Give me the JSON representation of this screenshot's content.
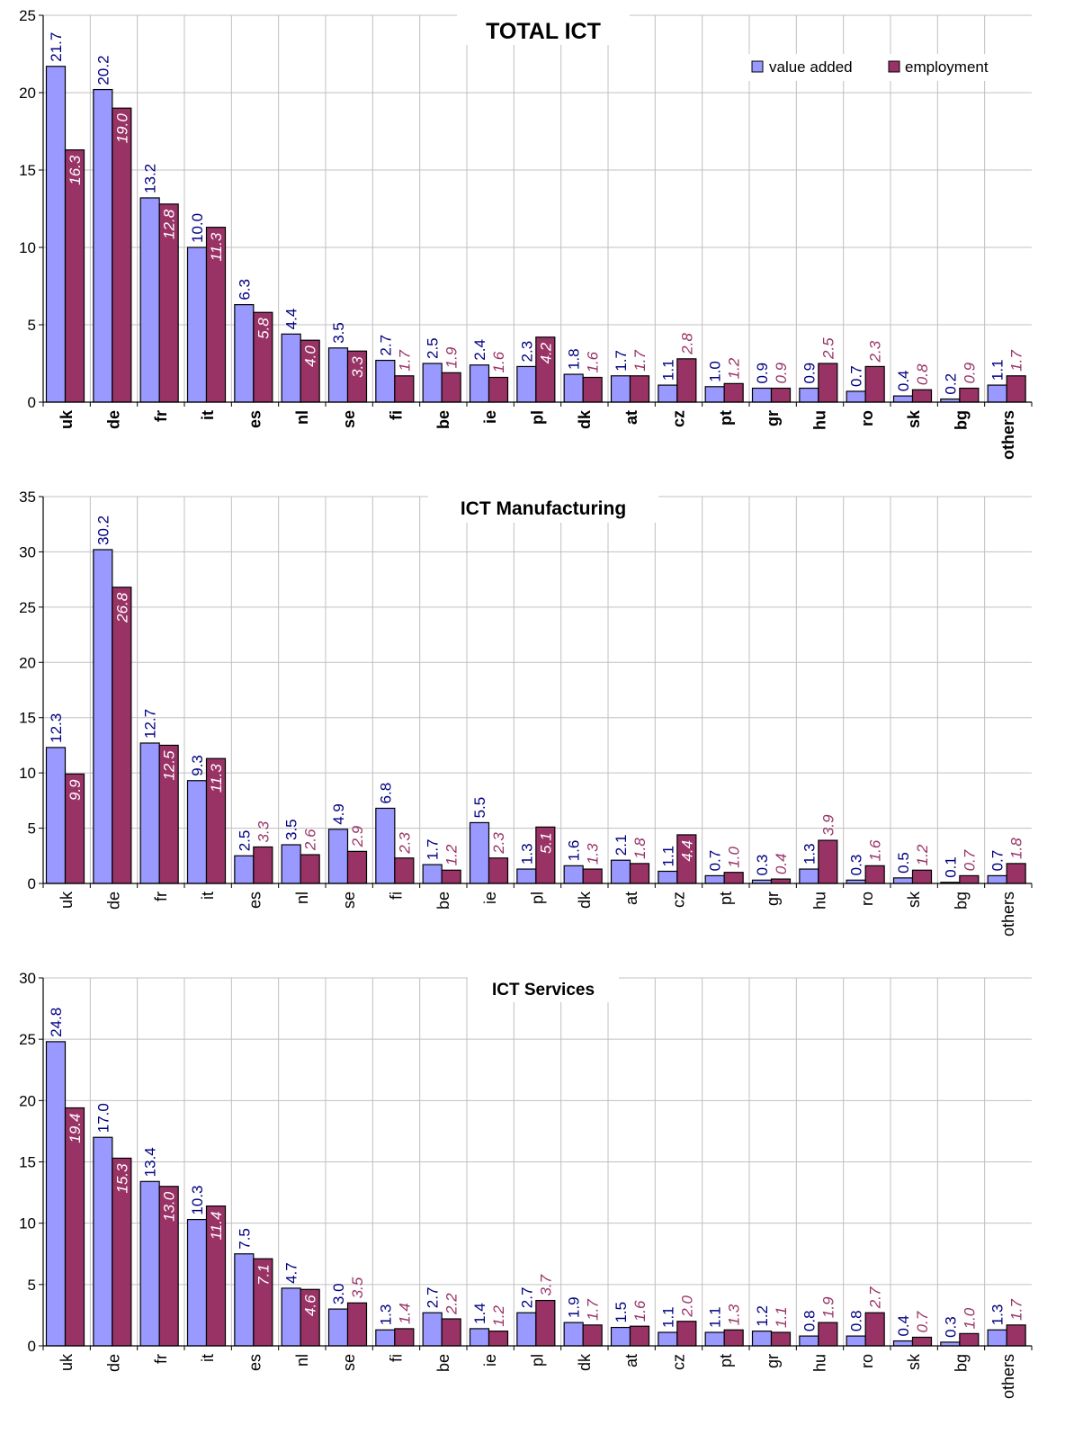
{
  "colors": {
    "value_added": "#9999FF",
    "employment": "#993366",
    "value_label": "#000080",
    "employment_label_outside": "#993366",
    "employment_label_inside": "#ffffff",
    "grid": "#c0c0c0"
  },
  "legend": {
    "value_added": "value added",
    "employment": "employment"
  },
  "chart_data": [
    {
      "type": "bar",
      "title": "TOTAL ICT",
      "categories": [
        "uk",
        "de",
        "fr",
        "it",
        "es",
        "nl",
        "se",
        "fi",
        "be",
        "ie",
        "pl",
        "dk",
        "at",
        "cz",
        "pt",
        "gr",
        "hu",
        "ro",
        "sk",
        "bg",
        "others"
      ],
      "categories_bold": true,
      "ylim": [
        0,
        25
      ],
      "yticks": [
        "0",
        "5",
        "10",
        "15",
        "20",
        "25"
      ],
      "show_legend": true,
      "series": [
        {
          "name": "value added",
          "values": [
            21.7,
            20.2,
            13.2,
            10.0,
            6.3,
            4.4,
            3.5,
            2.7,
            2.5,
            2.4,
            2.3,
            1.8,
            1.7,
            1.1,
            1.0,
            0.9,
            0.9,
            0.7,
            0.4,
            0.2,
            1.1
          ]
        },
        {
          "name": "employment",
          "values": [
            16.3,
            19.0,
            12.8,
            11.3,
            5.8,
            4.0,
            3.3,
            1.7,
            1.9,
            1.6,
            4.2,
            1.6,
            1.7,
            2.8,
            1.2,
            0.9,
            2.5,
            2.3,
            0.8,
            0.9,
            1.7
          ]
        }
      ]
    },
    {
      "type": "bar",
      "title": "ICT Manufacturing",
      "categories": [
        "uk",
        "de",
        "fr",
        "it",
        "es",
        "nl",
        "se",
        "fi",
        "be",
        "ie",
        "pl",
        "dk",
        "at",
        "cz",
        "pt",
        "gr",
        "hu",
        "ro",
        "sk",
        "bg",
        "others"
      ],
      "categories_bold": false,
      "ylim": [
        0,
        35
      ],
      "yticks": [
        "0",
        "5",
        "10",
        "15",
        "20",
        "25",
        "30",
        "35"
      ],
      "show_legend": false,
      "series": [
        {
          "name": "value added",
          "values": [
            12.3,
            30.2,
            12.7,
            9.3,
            2.5,
            3.5,
            4.9,
            6.8,
            1.7,
            5.5,
            1.3,
            1.6,
            2.1,
            1.1,
            0.7,
            0.3,
            1.3,
            0.3,
            0.5,
            0.1,
            0.7
          ]
        },
        {
          "name": "employment",
          "values": [
            9.9,
            26.8,
            12.5,
            11.3,
            3.3,
            2.6,
            2.9,
            2.3,
            1.2,
            2.3,
            5.1,
            1.3,
            1.8,
            4.4,
            1.0,
            0.4,
            3.9,
            1.6,
            1.2,
            0.7,
            1.8
          ]
        }
      ]
    },
    {
      "type": "bar",
      "title": "ICT Services",
      "categories": [
        "uk",
        "de",
        "fr",
        "it",
        "es",
        "nl",
        "se",
        "fi",
        "be",
        "ie",
        "pl",
        "dk",
        "at",
        "cz",
        "pt",
        "gr",
        "hu",
        "ro",
        "sk",
        "bg",
        "others"
      ],
      "categories_bold": false,
      "ylim": [
        0,
        30
      ],
      "yticks": [
        "0",
        "5",
        "10",
        "15",
        "20",
        "25",
        "30"
      ],
      "show_legend": false,
      "series": [
        {
          "name": "value added",
          "values": [
            24.8,
            17.0,
            13.4,
            10.3,
            7.5,
            4.7,
            3.0,
            1.3,
            2.7,
            1.4,
            2.7,
            1.9,
            1.5,
            1.1,
            1.1,
            1.2,
            0.8,
            0.8,
            0.4,
            0.3,
            1.3
          ]
        },
        {
          "name": "employment",
          "values": [
            19.4,
            15.3,
            13.0,
            11.4,
            7.1,
            4.6,
            3.5,
            1.4,
            2.2,
            1.2,
            3.7,
            1.7,
            1.6,
            2.0,
            1.3,
            1.1,
            1.9,
            2.7,
            0.7,
            1.0,
            1.7
          ]
        }
      ]
    }
  ]
}
